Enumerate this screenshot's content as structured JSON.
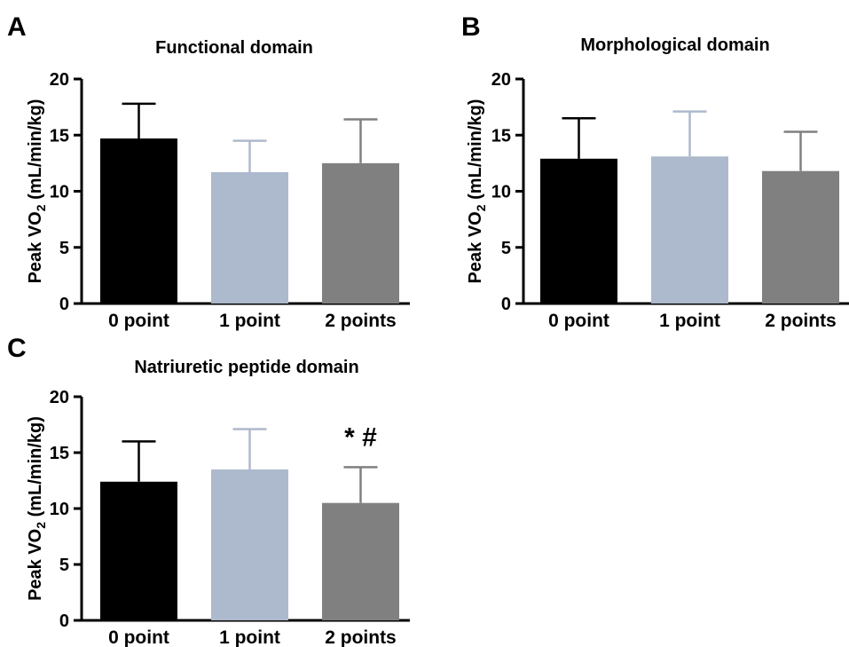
{
  "chart_data": [
    {
      "type": "bar",
      "panel": "A",
      "title": "Functional domain",
      "xlabel": "",
      "ylabel": "Peak VO2 (mL/min/kg)",
      "ylabel_parts": {
        "main": "Peak VO",
        "sub": "2",
        "unit": " (mL/min/kg)"
      },
      "ylim": [
        0,
        20
      ],
      "yticks": [
        0,
        5,
        10,
        15,
        20
      ],
      "categories": [
        "0 point",
        "1 point",
        "2 points"
      ],
      "values": [
        14.7,
        11.7,
        12.5
      ],
      "errors": [
        3.1,
        2.8,
        3.9
      ],
      "colors": [
        "#000000",
        "#adb9cc",
        "#808080"
      ],
      "annotations": [],
      "grid": false,
      "legend": "none"
    },
    {
      "type": "bar",
      "panel": "B",
      "title": "Morphological domain",
      "xlabel": "",
      "ylabel": "Peak VO2 (mL/min/kg)",
      "ylabel_parts": {
        "main": "Peak VO",
        "sub": "2",
        "unit": " (mL/min/kg)"
      },
      "ylim": [
        0,
        20
      ],
      "yticks": [
        0,
        5,
        10,
        15,
        20
      ],
      "categories": [
        "0 point",
        "1 point",
        "2 points"
      ],
      "values": [
        12.9,
        13.1,
        11.8
      ],
      "errors": [
        3.6,
        4.0,
        3.5
      ],
      "colors": [
        "#000000",
        "#adb9cc",
        "#808080"
      ],
      "annotations": [],
      "grid": false,
      "legend": "none"
    },
    {
      "type": "bar",
      "panel": "C",
      "title": "Natriuretic peptide domain",
      "xlabel": "",
      "ylabel": "Peak VO2 (mL/min/kg)",
      "ylabel_parts": {
        "main": "Peak VO",
        "sub": "2",
        "unit": " (mL/min/kg)"
      },
      "ylim": [
        0,
        20
      ],
      "yticks": [
        0,
        5,
        10,
        15,
        20
      ],
      "categories": [
        "0 point",
        "1 point",
        "2 points"
      ],
      "values": [
        12.4,
        13.5,
        10.5
      ],
      "errors": [
        3.6,
        3.6,
        3.2
      ],
      "colors": [
        "#000000",
        "#adb9cc",
        "#808080"
      ],
      "annotations": [
        {
          "category": "2 points",
          "text": "* #"
        }
      ],
      "grid": false,
      "legend": "none"
    }
  ]
}
